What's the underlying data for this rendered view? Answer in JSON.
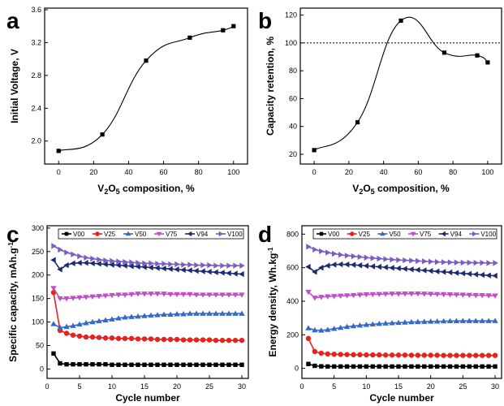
{
  "chart_data": [
    {
      "panel": "a",
      "type": "line",
      "xlabel_main": "V",
      "xlabel_sub1": "2",
      "xlabel_mid": "O",
      "xlabel_sub2": "5",
      "xlabel_rest": " composition, %",
      "ylabel": "Initial Voltage, V",
      "xlim": [
        -8,
        108
      ],
      "ylim": [
        1.72,
        3.62
      ],
      "xticks": [
        0,
        20,
        40,
        60,
        80,
        100
      ],
      "yticks": [
        2.0,
        2.4,
        2.8,
        3.2,
        3.6
      ],
      "ytick_labels": [
        "2.0",
        "2.4",
        "2.8",
        "3.2",
        "3.6"
      ],
      "x": [
        0,
        25,
        50,
        75,
        94,
        100
      ],
      "y": [
        1.88,
        2.08,
        2.98,
        3.26,
        3.35,
        3.4
      ],
      "marker": "square",
      "color": "#000000"
    },
    {
      "panel": "b",
      "type": "line",
      "xlabel_main": "V",
      "xlabel_sub1": "2",
      "xlabel_mid": "O",
      "xlabel_sub2": "5",
      "xlabel_rest": " composition, %",
      "ylabel": "Capacity retention, %",
      "xlim": [
        -8,
        108
      ],
      "ylim": [
        13,
        125
      ],
      "xticks": [
        0,
        20,
        40,
        60,
        80,
        100
      ],
      "yticks": [
        20,
        40,
        60,
        80,
        100,
        120
      ],
      "ytick_labels": [
        "20",
        "40",
        "60",
        "80",
        "100",
        "120"
      ],
      "x": [
        0,
        25,
        50,
        75,
        94,
        100
      ],
      "y": [
        23,
        43,
        116,
        93,
        91,
        86
      ],
      "reference_line": 100,
      "marker": "square",
      "color": "#000000"
    },
    {
      "panel": "c",
      "type": "line",
      "xlabel": "Cycle number",
      "ylabel_main": "Specific capacity, mAh.g",
      "ylabel_sup": "-1",
      "xlim": [
        0,
        31
      ],
      "ylim": [
        -20,
        305
      ],
      "xticks": [
        0,
        5,
        10,
        15,
        20,
        25,
        30
      ],
      "yticks": [
        0,
        50,
        100,
        150,
        200,
        250,
        300
      ],
      "ytick_labels": [
        "0",
        "50",
        "100",
        "150",
        "200",
        "250",
        "300"
      ],
      "legend_position": "top",
      "series": [
        {
          "name": "V00",
          "color": "#000000",
          "marker": "square",
          "values": [
            33,
            12,
            10,
            10,
            10,
            10,
            10,
            10,
            10,
            9,
            9,
            9,
            9,
            9,
            9,
            9,
            9,
            9,
            9,
            9,
            9,
            9,
            9,
            9,
            9,
            9,
            9,
            9,
            9,
            9
          ]
        },
        {
          "name": "V25",
          "color": "#e8211d",
          "marker": "circle",
          "values": [
            163,
            82,
            76,
            72,
            70,
            68,
            68,
            67,
            66,
            66,
            65,
            65,
            65,
            64,
            64,
            64,
            63,
            63,
            63,
            63,
            62,
            62,
            62,
            62,
            62,
            61,
            61,
            61,
            61,
            61
          ]
        },
        {
          "name": "V50",
          "color": "#3569c8",
          "marker": "triangle-up",
          "values": [
            96,
            88,
            90,
            92,
            95,
            98,
            100,
            102,
            104,
            106,
            108,
            110,
            111,
            112,
            113,
            114,
            115,
            116,
            116,
            117,
            117,
            118,
            118,
            118,
            118,
            118,
            118,
            118,
            118,
            118
          ]
        },
        {
          "name": "V75",
          "color": "#c04ec8",
          "marker": "triangle-down",
          "values": [
            172,
            150,
            150,
            151,
            152,
            153,
            154,
            155,
            156,
            157,
            158,
            158,
            159,
            160,
            160,
            160,
            160,
            160,
            159,
            159,
            159,
            159,
            158,
            158,
            158,
            158,
            158,
            158,
            158,
            158
          ]
        },
        {
          "name": "V94",
          "color": "#1d2a6e",
          "marker": "triangle-left",
          "values": [
            232,
            212,
            221,
            225,
            226,
            226,
            225,
            224,
            223,
            222,
            221,
            220,
            219,
            218,
            217,
            216,
            215,
            214,
            213,
            212,
            211,
            210,
            209,
            208,
            207,
            206,
            205,
            204,
            203,
            202
          ]
        },
        {
          "name": "V100",
          "color": "#7a5cc4",
          "marker": "triangle-right",
          "values": [
            262,
            254,
            248,
            244,
            240,
            237,
            235,
            233,
            231,
            230,
            229,
            228,
            227,
            226,
            225,
            225,
            224,
            224,
            223,
            223,
            222,
            222,
            221,
            221,
            221,
            220,
            220,
            220,
            220,
            220
          ]
        }
      ]
    },
    {
      "panel": "d",
      "type": "line",
      "xlabel": "Cycle number",
      "ylabel_main": "Energy density, Wh.kg",
      "ylabel_sup": "-1",
      "xlim": [
        0,
        31
      ],
      "ylim": [
        -60,
        850
      ],
      "xticks": [
        0,
        5,
        10,
        15,
        20,
        25,
        30
      ],
      "yticks": [
        0,
        200,
        400,
        600,
        800
      ],
      "ytick_labels": [
        "0",
        "200",
        "400",
        "600",
        "800"
      ],
      "legend_position": "top",
      "series": [
        {
          "name": "V00",
          "color": "#000000",
          "marker": "square",
          "values": [
            26,
            15,
            12,
            11,
            11,
            11,
            11,
            11,
            11,
            11,
            11,
            11,
            11,
            11,
            11,
            11,
            11,
            11,
            11,
            11,
            11,
            11,
            11,
            11,
            11,
            11,
            11,
            11,
            11,
            11
          ]
        },
        {
          "name": "V25",
          "color": "#e8211d",
          "marker": "circle",
          "values": [
            178,
            100,
            90,
            86,
            84,
            83,
            82,
            81,
            81,
            80,
            80,
            80,
            79,
            79,
            79,
            79,
            78,
            78,
            78,
            78,
            78,
            77,
            77,
            77,
            77,
            77,
            77,
            77,
            77,
            77
          ]
        },
        {
          "name": "V50",
          "color": "#3569c8",
          "marker": "triangle-up",
          "values": [
            240,
            228,
            226,
            230,
            236,
            242,
            248,
            252,
            256,
            260,
            263,
            266,
            268,
            270,
            272,
            274,
            276,
            277,
            278,
            279,
            280,
            281,
            282,
            282,
            283,
            283,
            283,
            283,
            283,
            283
          ]
        },
        {
          "name": "V75",
          "color": "#c04ec8",
          "marker": "triangle-down",
          "values": [
            455,
            420,
            425,
            428,
            430,
            432,
            434,
            436,
            438,
            440,
            441,
            442,
            443,
            444,
            444,
            445,
            445,
            445,
            444,
            443,
            442,
            441,
            440,
            439,
            438,
            437,
            436,
            435,
            434,
            433
          ]
        },
        {
          "name": "V94",
          "color": "#1d2a6e",
          "marker": "triangle-left",
          "values": [
            605,
            575,
            600,
            612,
            618,
            620,
            619,
            617,
            614,
            611,
            608,
            605,
            602,
            599,
            596,
            593,
            590,
            587,
            584,
            581,
            578,
            575,
            572,
            569,
            566,
            563,
            560,
            557,
            554,
            552
          ]
        },
        {
          "name": "V100",
          "color": "#7a5cc4",
          "marker": "triangle-right",
          "values": [
            725,
            708,
            698,
            690,
            683,
            677,
            672,
            668,
            664,
            660,
            657,
            654,
            651,
            648,
            646,
            644,
            642,
            640,
            638,
            636,
            634,
            633,
            632,
            631,
            630,
            630,
            629,
            629,
            628,
            628
          ]
        }
      ]
    }
  ]
}
